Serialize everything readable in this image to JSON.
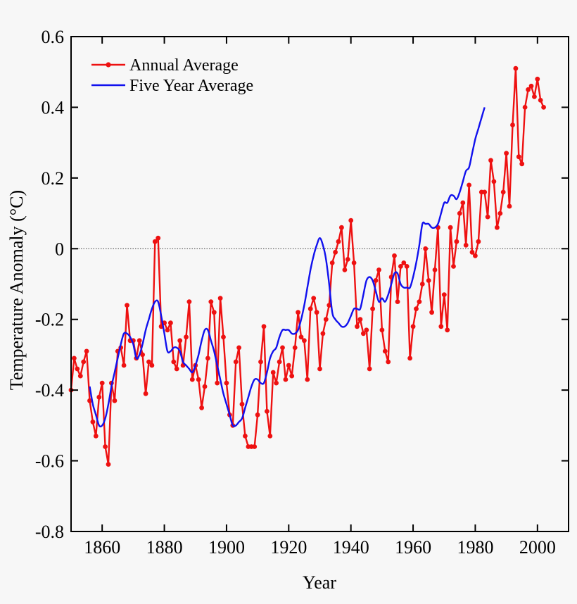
{
  "chart_data": {
    "type": "line",
    "title": "",
    "xlabel": "Year",
    "ylabel": "Temperature Anomaly (°C)",
    "xlim": [
      1850,
      2010
    ],
    "ylim": [
      -0.8,
      0.6
    ],
    "x_ticks": [
      1860,
      1880,
      1900,
      1920,
      1940,
      1960,
      1980,
      2000
    ],
    "x_tick_labels": [
      "1860",
      "1880",
      "1900",
      "1920",
      "1940",
      "1960",
      "1980",
      "2000"
    ],
    "y_ticks": [
      0.6,
      0.4,
      0.2,
      0,
      -0.2,
      -0.4,
      -0.6,
      -0.8
    ],
    "y_tick_labels": [
      "0.6",
      "0.4",
      "0.2",
      "0",
      "-0.2",
      "-0.4",
      "-0.6",
      "-0.8"
    ],
    "zero_line": true,
    "legend_position": "top-left",
    "colors": {
      "annual": "#ee1111",
      "five_year": "#1111ee",
      "axis": "#000000",
      "background": "#f7f7f7"
    },
    "legend": [
      {
        "label": "Annual Average",
        "series": "annual"
      },
      {
        "label": "Five Year Average",
        "series": "five_year"
      }
    ],
    "series": [
      {
        "name": "Annual Average",
        "key": "annual",
        "x_start": 1850,
        "step": 1,
        "values": [
          -0.4,
          -0.31,
          -0.34,
          -0.36,
          -0.32,
          -0.29,
          -0.43,
          -0.49,
          -0.53,
          -0.42,
          -0.38,
          -0.56,
          -0.61,
          -0.38,
          -0.43,
          -0.29,
          -0.28,
          -0.33,
          -0.16,
          -0.26,
          -0.26,
          -0.31,
          -0.26,
          -0.3,
          -0.41,
          -0.32,
          -0.33,
          0.02,
          0.03,
          -0.22,
          -0.21,
          -0.23,
          -0.21,
          -0.32,
          -0.34,
          -0.26,
          -0.33,
          -0.25,
          -0.15,
          -0.37,
          -0.33,
          -0.37,
          -0.45,
          -0.39,
          -0.31,
          -0.15,
          -0.18,
          -0.38,
          -0.14,
          -0.25,
          -0.38,
          -0.47,
          -0.5,
          -0.32,
          -0.28,
          -0.44,
          -0.53,
          -0.56,
          -0.56,
          -0.56,
          -0.47,
          -0.32,
          -0.22,
          -0.46,
          -0.53,
          -0.35,
          -0.38,
          -0.32,
          -0.28,
          -0.37,
          -0.33,
          -0.36,
          -0.28,
          -0.18,
          -0.25,
          -0.26,
          -0.37,
          -0.17,
          -0.14,
          -0.18,
          -0.34,
          -0.24,
          -0.2,
          -0.16,
          -0.04,
          -0.01,
          0.02,
          0.06,
          -0.06,
          -0.03,
          0.08,
          -0.04,
          -0.22,
          -0.2,
          -0.24,
          -0.23,
          -0.34,
          -0.17,
          -0.09,
          -0.06,
          -0.23,
          -0.29,
          -0.32,
          -0.08,
          -0.02,
          -0.15,
          -0.05,
          -0.04,
          -0.05,
          -0.31,
          -0.22,
          -0.17,
          -0.15,
          -0.1,
          0.0,
          -0.09,
          -0.18,
          -0.06,
          0.06,
          -0.22,
          -0.13,
          -0.23,
          0.06,
          -0.05,
          0.02,
          0.1,
          0.13,
          0.01,
          0.18,
          -0.01,
          -0.02,
          0.02,
          0.16,
          0.16,
          0.09,
          0.25,
          0.19,
          0.06,
          0.1,
          0.16,
          0.27,
          0.12,
          0.35,
          0.51,
          0.26,
          0.24,
          0.4,
          0.45,
          0.46,
          0.43,
          0.48,
          0.42,
          0.4
        ]
      },
      {
        "name": "Five Year Average",
        "key": "five_year",
        "x_start": 1856,
        "step": 1,
        "values": [
          -0.39,
          -0.44,
          -0.47,
          -0.5,
          -0.5,
          -0.48,
          -0.44,
          -0.39,
          -0.35,
          -0.31,
          -0.27,
          -0.24,
          -0.24,
          -0.25,
          -0.27,
          -0.31,
          -0.3,
          -0.27,
          -0.23,
          -0.2,
          -0.17,
          -0.15,
          -0.15,
          -0.19,
          -0.24,
          -0.29,
          -0.29,
          -0.28,
          -0.28,
          -0.29,
          -0.32,
          -0.33,
          -0.34,
          -0.35,
          -0.33,
          -0.3,
          -0.26,
          -0.23,
          -0.23,
          -0.26,
          -0.29,
          -0.33,
          -0.37,
          -0.41,
          -0.44,
          -0.47,
          -0.5,
          -0.5,
          -0.49,
          -0.48,
          -0.45,
          -0.42,
          -0.39,
          -0.37,
          -0.37,
          -0.38,
          -0.38,
          -0.35,
          -0.31,
          -0.29,
          -0.28,
          -0.25,
          -0.23,
          -0.23,
          -0.23,
          -0.24,
          -0.24,
          -0.23,
          -0.2,
          -0.16,
          -0.11,
          -0.06,
          -0.02,
          0.01,
          0.03,
          0.01,
          -0.03,
          -0.1,
          -0.18,
          -0.2,
          -0.21,
          -0.22,
          -0.22,
          -0.21,
          -0.19,
          -0.17,
          -0.17,
          -0.17,
          -0.13,
          -0.09,
          -0.08,
          -0.09,
          -0.12,
          -0.15,
          -0.14,
          -0.15,
          -0.13,
          -0.1,
          -0.07,
          -0.07,
          -0.1,
          -0.11,
          -0.11,
          -0.11,
          -0.08,
          -0.04,
          0.01,
          0.07,
          0.07,
          0.07,
          0.06,
          0.06,
          0.07,
          0.1,
          0.13,
          0.13,
          0.15,
          0.15,
          0.14,
          0.16,
          0.19,
          0.22,
          0.23,
          0.27,
          0.31,
          0.34,
          0.37,
          0.4
        ]
      }
    ]
  }
}
